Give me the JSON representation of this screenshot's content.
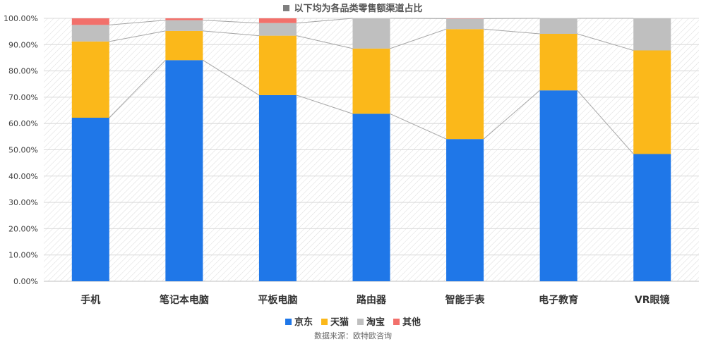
{
  "chart_data": {
    "type": "bar",
    "stacked": true,
    "title": "以下均为各品类零售额渠道占比",
    "categories": [
      "手机",
      "笔记本电脑",
      "平板电脑",
      "路由器",
      "智能手表",
      "电子教育",
      "VR眼镜"
    ],
    "series": [
      {
        "name": "京东",
        "color": "#1f77e8",
        "values": [
          62.2,
          84.1,
          70.8,
          63.7,
          54.1,
          72.6,
          48.4
        ]
      },
      {
        "name": "天猫",
        "color": "#fbb81a",
        "values": [
          29.0,
          11.1,
          22.6,
          24.8,
          41.8,
          21.5,
          39.4
        ]
      },
      {
        "name": "淘宝",
        "color": "#bfbfbf",
        "values": [
          6.3,
          4.1,
          4.8,
          11.5,
          4.0,
          5.9,
          12.2
        ]
      },
      {
        "name": "其他",
        "color": "#f2706b",
        "values": [
          2.5,
          0.7,
          1.8,
          0.0,
          0.1,
          0.0,
          0.0
        ]
      }
    ],
    "ylim": [
      0,
      100
    ],
    "y_ticks": [
      "0.00%",
      "10.00%",
      "20.00%",
      "30.00%",
      "40.00%",
      "50.00%",
      "60.00%",
      "70.00%",
      "80.00%",
      "90.00%",
      "100.00%"
    ],
    "legend_position": "bottom",
    "series_lines": true,
    "source": "数据来源：欧特欧咨询"
  }
}
